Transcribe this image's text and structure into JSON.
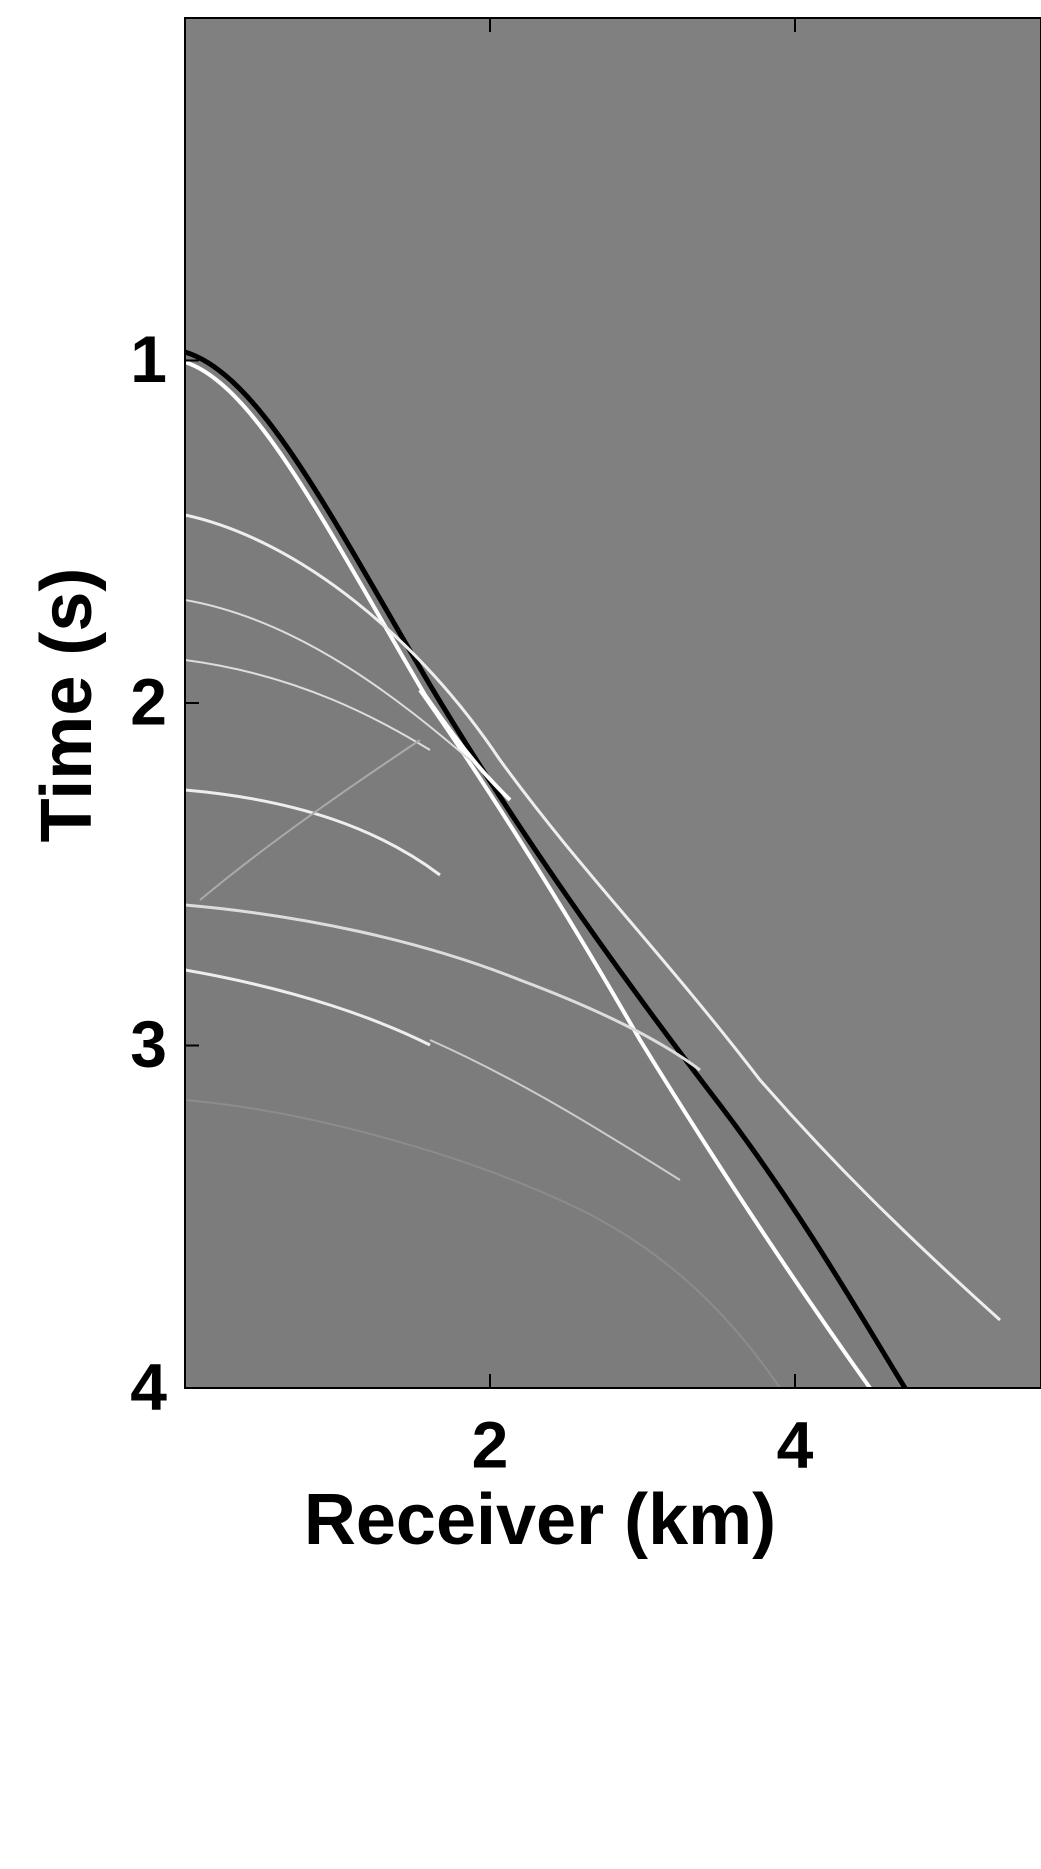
{
  "chart_data": {
    "type": "image",
    "xlabel": "Receiver (km)",
    "ylabel": "Time (s)",
    "xlim": [
      0,
      5.6
    ],
    "ylim": [
      4,
      0
    ],
    "xticks": [
      2,
      4
    ],
    "yticks": [
      1,
      2,
      3,
      4
    ],
    "background": "#808080"
  }
}
